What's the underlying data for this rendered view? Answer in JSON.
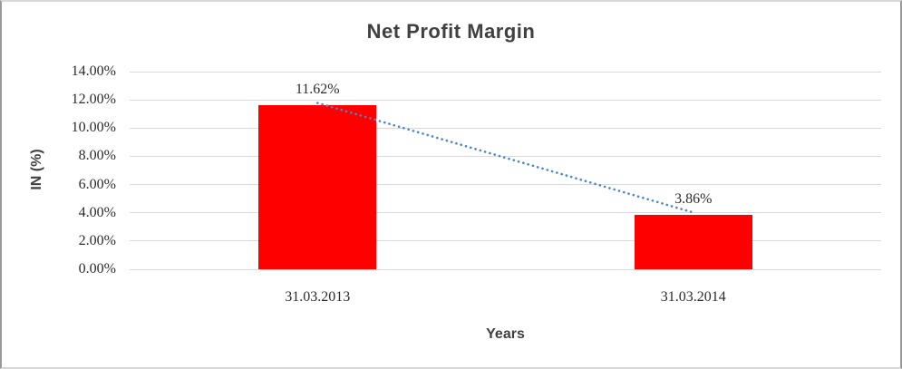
{
  "frame": {
    "background": "#FFFFFF",
    "border_color": "#9A9A9A"
  },
  "chart_data": {
    "type": "bar",
    "title": "Net Profit Margin",
    "xlabel": "Years",
    "ylabel": "IN (%)",
    "categories": [
      "31.03.2013",
      "31.03.2014"
    ],
    "series": [
      {
        "name": "Net Profit Margin",
        "values": [
          11.62,
          3.86
        ],
        "data_labels": [
          "11.62%",
          "3.86%"
        ],
        "color": "#FF0000"
      }
    ],
    "ylim": [
      0,
      14
    ],
    "ytick_step": 2,
    "ytick_labels": [
      "0.00%",
      "2.00%",
      "4.00%",
      "6.00%",
      "8.00%",
      "10.00%",
      "12.00%",
      "14.00%"
    ],
    "grid": true,
    "legend_position": "none",
    "trendline": {
      "style": "dotted",
      "color": "#4A86C8",
      "from_value": 11.62,
      "to_value": 3.86
    },
    "colors": {
      "title_text": "#404040",
      "axis_title_text": "#404040",
      "tick_text": "#2B2B2B",
      "gridline": "#D9D9D9"
    }
  }
}
